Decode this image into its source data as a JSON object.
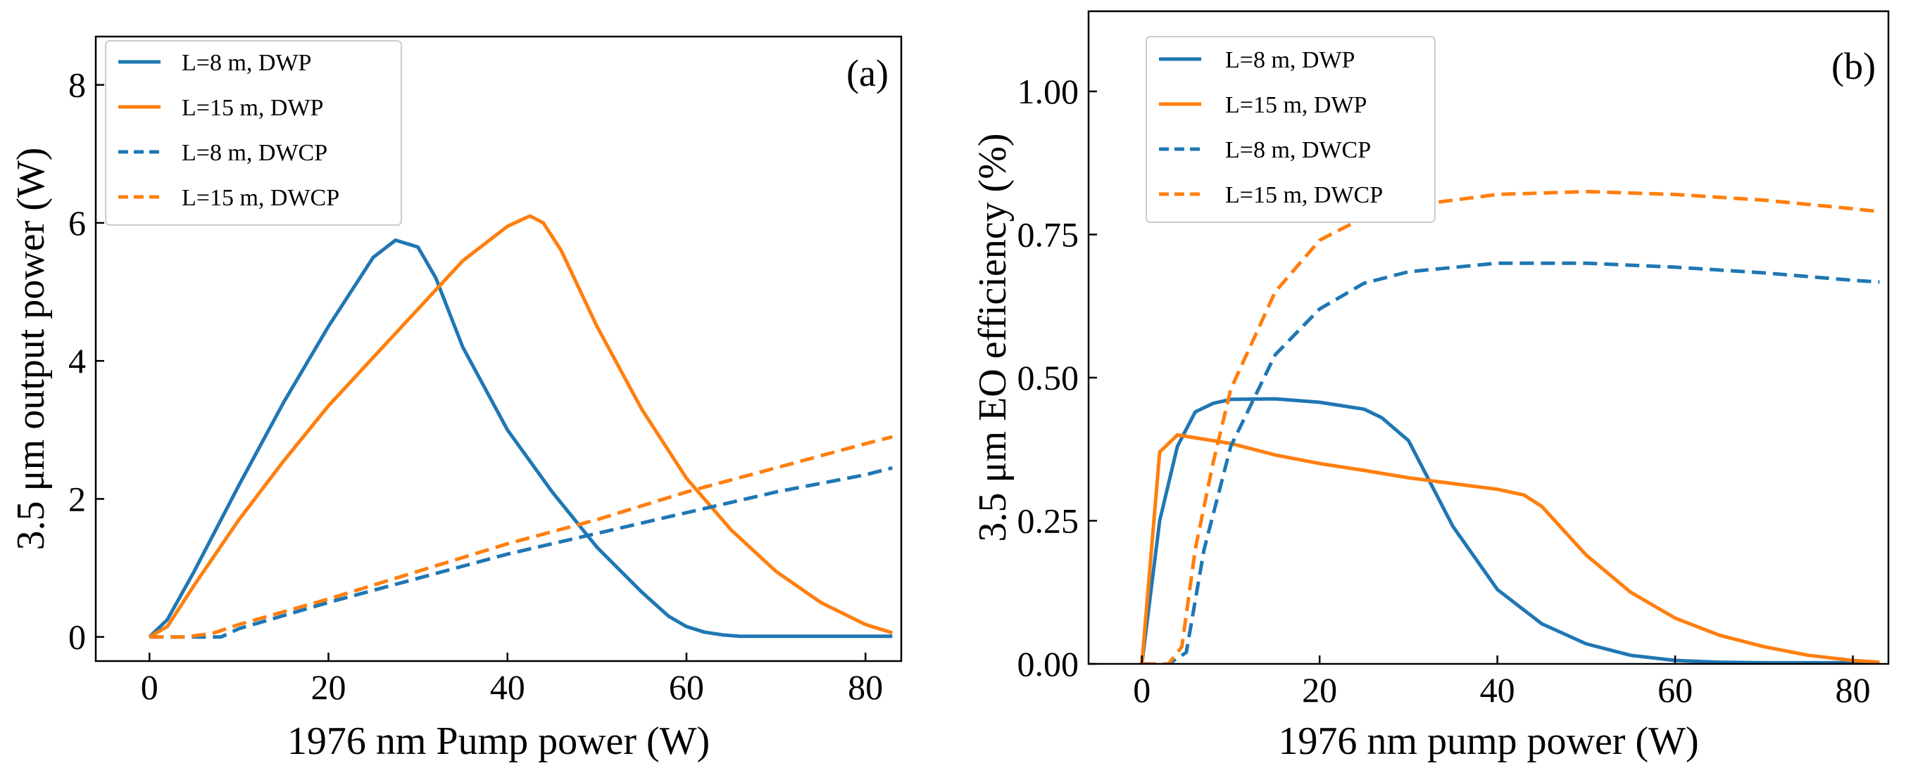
{
  "chart_data": [
    {
      "type": "line",
      "panel_label": "(a)",
      "xlabel": "1976 nm Pump power (W)",
      "ylabel": "3.5 μm output power (W)",
      "xlim": [
        -6,
        84
      ],
      "ylim": [
        -0.35,
        8.7
      ],
      "xticks": [
        0,
        20,
        40,
        60,
        80
      ],
      "xtick_labels": [
        "0",
        "20",
        "40",
        "60",
        "80"
      ],
      "yticks": [
        0,
        2,
        4,
        6,
        8
      ],
      "ytick_labels": [
        "0",
        "2",
        "4",
        "6",
        "8"
      ],
      "grid": false,
      "legend_position": "top-left",
      "series": [
        {
          "name": "L=8 m, DWP",
          "color": "#1f77b4",
          "dash": "solid",
          "x": [
            0,
            2,
            5,
            10,
            15,
            20,
            25,
            27.5,
            30,
            32,
            35,
            40,
            45,
            50,
            55,
            58,
            60,
            62,
            64,
            66,
            70,
            75,
            80,
            83
          ],
          "y": [
            0,
            0.25,
            0.95,
            2.2,
            3.4,
            4.5,
            5.5,
            5.75,
            5.65,
            5.2,
            4.2,
            3.0,
            2.1,
            1.3,
            0.65,
            0.3,
            0.15,
            0.07,
            0.03,
            0.01,
            0.01,
            0.01,
            0.01,
            0.01
          ]
        },
        {
          "name": "L=15 m, DWP",
          "color": "#ff7f0e",
          "dash": "solid",
          "x": [
            0,
            2,
            5,
            10,
            15,
            20,
            25,
            30,
            35,
            40,
            42.5,
            44,
            46,
            50,
            55,
            60,
            65,
            70,
            75,
            80,
            83
          ],
          "y": [
            0,
            0.15,
            0.75,
            1.7,
            2.55,
            3.35,
            4.05,
            4.75,
            5.45,
            5.95,
            6.1,
            6.0,
            5.6,
            4.5,
            3.3,
            2.3,
            1.55,
            0.95,
            0.5,
            0.18,
            0.06
          ]
        },
        {
          "name": "L=8 m, DWCP",
          "color": "#1f77b4",
          "dash": "dashed",
          "x": [
            0,
            5,
            8,
            10,
            20,
            30,
            40,
            50,
            60,
            70,
            80,
            83
          ],
          "y": [
            0,
            0,
            0,
            0.12,
            0.5,
            0.85,
            1.2,
            1.5,
            1.8,
            2.1,
            2.35,
            2.45
          ]
        },
        {
          "name": "L=15 m, DWCP",
          "color": "#ff7f0e",
          "dash": "dashed",
          "x": [
            0,
            4,
            7,
            10,
            20,
            30,
            40,
            50,
            60,
            70,
            80,
            83
          ],
          "y": [
            0,
            0,
            0.05,
            0.18,
            0.55,
            0.95,
            1.35,
            1.7,
            2.1,
            2.45,
            2.8,
            2.9
          ]
        }
      ]
    },
    {
      "type": "line",
      "panel_label": "(b)",
      "xlabel": "1976 nm pump power (W)",
      "ylabel": "3.5 μm EO efficiency (%)",
      "xlim": [
        -6,
        84
      ],
      "ylim": [
        0,
        1.14
      ],
      "xticks": [
        0,
        20,
        40,
        60,
        80
      ],
      "xtick_labels": [
        "0",
        "20",
        "40",
        "60",
        "80"
      ],
      "yticks": [
        0,
        0.25,
        0.5,
        0.75,
        1.0
      ],
      "ytick_labels": [
        "0.00",
        "0.25",
        "0.50",
        "0.75",
        "1.00"
      ],
      "grid": false,
      "legend_position": "top-left",
      "series": [
        {
          "name": "L=8 m, DWP",
          "color": "#1f77b4",
          "dash": "solid",
          "x": [
            0,
            2,
            4,
            6,
            8,
            10,
            15,
            20,
            25,
            27,
            30,
            35,
            40,
            45,
            50,
            55,
            60,
            65,
            70,
            75,
            80,
            83
          ],
          "y": [
            0,
            0.25,
            0.38,
            0.44,
            0.455,
            0.462,
            0.463,
            0.457,
            0.445,
            0.43,
            0.39,
            0.24,
            0.13,
            0.07,
            0.035,
            0.015,
            0.006,
            0.003,
            0.002,
            0.002,
            0.002,
            0.002
          ]
        },
        {
          "name": "L=15 m, DWP",
          "color": "#ff7f0e",
          "dash": "solid",
          "x": [
            0,
            2,
            4,
            6,
            10,
            15,
            20,
            25,
            30,
            35,
            40,
            43,
            45,
            50,
            55,
            60,
            65,
            70,
            75,
            80,
            83
          ],
          "y": [
            0,
            0.37,
            0.4,
            0.395,
            0.385,
            0.365,
            0.35,
            0.338,
            0.325,
            0.315,
            0.305,
            0.295,
            0.275,
            0.19,
            0.125,
            0.08,
            0.05,
            0.03,
            0.015,
            0.006,
            0.003
          ]
        },
        {
          "name": "L=8 m, DWCP",
          "color": "#1f77b4",
          "dash": "dashed",
          "x": [
            0,
            3,
            5,
            7,
            10,
            15,
            20,
            25,
            30,
            40,
            50,
            60,
            70,
            80,
            83
          ],
          "y": [
            0,
            0,
            0.02,
            0.2,
            0.38,
            0.54,
            0.62,
            0.665,
            0.685,
            0.7,
            0.7,
            0.693,
            0.683,
            0.67,
            0.667
          ]
        },
        {
          "name": "L=15 m, DWCP",
          "color": "#ff7f0e",
          "dash": "dashed",
          "x": [
            0,
            3,
            4.5,
            6,
            8,
            10,
            15,
            20,
            25,
            30,
            40,
            50,
            60,
            70,
            80,
            83
          ],
          "y": [
            0,
            0,
            0.03,
            0.2,
            0.35,
            0.48,
            0.65,
            0.74,
            0.78,
            0.8,
            0.82,
            0.825,
            0.82,
            0.81,
            0.795,
            0.79
          ]
        }
      ]
    }
  ]
}
